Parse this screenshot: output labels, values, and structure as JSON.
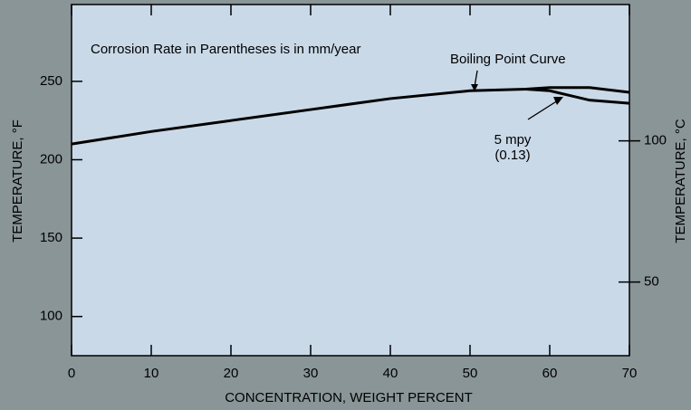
{
  "chart_data": {
    "type": "line",
    "x_label": "CONCENTRATION, WEIGHT PERCENT",
    "y_label": "TEMPERATURE, °F",
    "y2_label": "TEMPERATURE, °C",
    "annotations": [
      "Corrosion Rate in Parentheses is in mm/year",
      "Boiling Point Curve",
      "5 mpy",
      "(0.13)"
    ],
    "series": [
      {
        "color": "#000000",
        "x": [
          0,
          10,
          20,
          30,
          40,
          50,
          57,
          60,
          65,
          70
        ],
        "values": [
          210,
          218,
          225,
          232,
          239,
          244,
          245,
          246,
          246,
          243
        ]
      },
      {
        "color": "#000000",
        "x": [
          57,
          60,
          65,
          70
        ],
        "values": [
          245,
          244,
          238,
          236
        ]
      }
    ],
    "xlim": [
      0,
      70
    ],
    "xticks": [
      0,
      10,
      20,
      30,
      40,
      50,
      60,
      70
    ],
    "ylim": [
      75,
      299
    ],
    "yticks": [
      100,
      150,
      200,
      250
    ],
    "y2lim": [
      23.9,
      148.3
    ],
    "y2ticks": [
      50,
      100
    ]
  }
}
